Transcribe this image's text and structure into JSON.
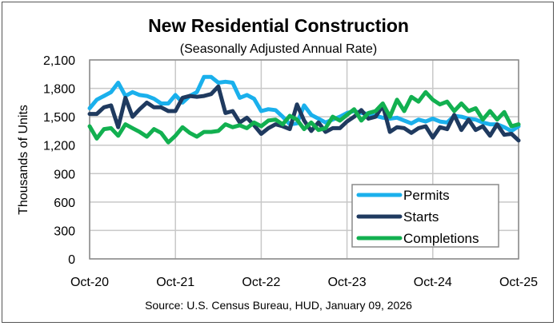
{
  "chart_data": {
    "type": "line",
    "title": "New Residential Construction",
    "subtitle": "(Seasonally Adjusted Annual Rate)",
    "xlabel": "",
    "ylabel": "Thousands of Units",
    "ylim": [
      0,
      2100
    ],
    "yticks": [
      0,
      300,
      600,
      900,
      1200,
      1500,
      1800,
      2100
    ],
    "ytick_labels": [
      "0",
      "300",
      "600",
      "900",
      "1,200",
      "1,500",
      "1,800",
      "2,100"
    ],
    "xtick_labels": [
      "Oct-20",
      "Oct-21",
      "Oct-22",
      "Oct-23",
      "Oct-24",
      "Oct-25"
    ],
    "x_start": "Oct-20",
    "x_end": "Oct-25",
    "frequency": "monthly",
    "grid": true,
    "legend_position": "bottom-right",
    "source": "Source:  U.S. Census Bureau, HUD, January 09, 2026",
    "series": [
      {
        "name": "Permits",
        "color": "#1AB0EC",
        "values": [
          1590,
          1680,
          1720,
          1760,
          1860,
          1720,
          1760,
          1730,
          1720,
          1690,
          1640,
          1640,
          1730,
          1650,
          1720,
          1760,
          1920,
          1920,
          1860,
          1870,
          1860,
          1700,
          1730,
          1690,
          1560,
          1580,
          1570,
          1500,
          1420,
          1430,
          1620,
          1520,
          1480,
          1440,
          1470,
          1500,
          1540,
          1560,
          1540,
          1530,
          1510,
          1490,
          1480,
          1490,
          1460,
          1430,
          1470,
          1450,
          1480,
          1450,
          1440,
          1510,
          1500,
          1480,
          1470,
          1440,
          1420,
          1420,
          1390,
          1350,
          1400
        ]
      },
      {
        "name": "Starts",
        "color": "#1F3A5F",
        "values": [
          1530,
          1530,
          1600,
          1620,
          1390,
          1700,
          1500,
          1580,
          1650,
          1600,
          1600,
          1560,
          1560,
          1700,
          1720,
          1710,
          1720,
          1740,
          1820,
          1540,
          1560,
          1440,
          1490,
          1410,
          1320,
          1380,
          1420,
          1400,
          1370,
          1630,
          1460,
          1350,
          1440,
          1340,
          1380,
          1380,
          1450,
          1500,
          1570,
          1480,
          1500,
          1620,
          1340,
          1390,
          1380,
          1330,
          1380,
          1400,
          1280,
          1390,
          1370,
          1520,
          1360,
          1470,
          1360,
          1400,
          1300,
          1420,
          1310,
          1320,
          1250
        ]
      },
      {
        "name": "Completions",
        "color": "#12B050",
        "values": [
          1400,
          1270,
          1370,
          1380,
          1300,
          1420,
          1380,
          1340,
          1290,
          1370,
          1330,
          1230,
          1300,
          1390,
          1330,
          1290,
          1340,
          1340,
          1350,
          1420,
          1390,
          1410,
          1380,
          1440,
          1400,
          1460,
          1470,
          1420,
          1510,
          1470,
          1370,
          1440,
          1360,
          1380,
          1500,
          1460,
          1520,
          1580,
          1460,
          1540,
          1560,
          1640,
          1500,
          1680,
          1560,
          1710,
          1660,
          1760,
          1680,
          1630,
          1660,
          1560,
          1640,
          1560,
          1590,
          1470,
          1560,
          1470,
          1550,
          1400,
          1420
        ]
      }
    ]
  }
}
